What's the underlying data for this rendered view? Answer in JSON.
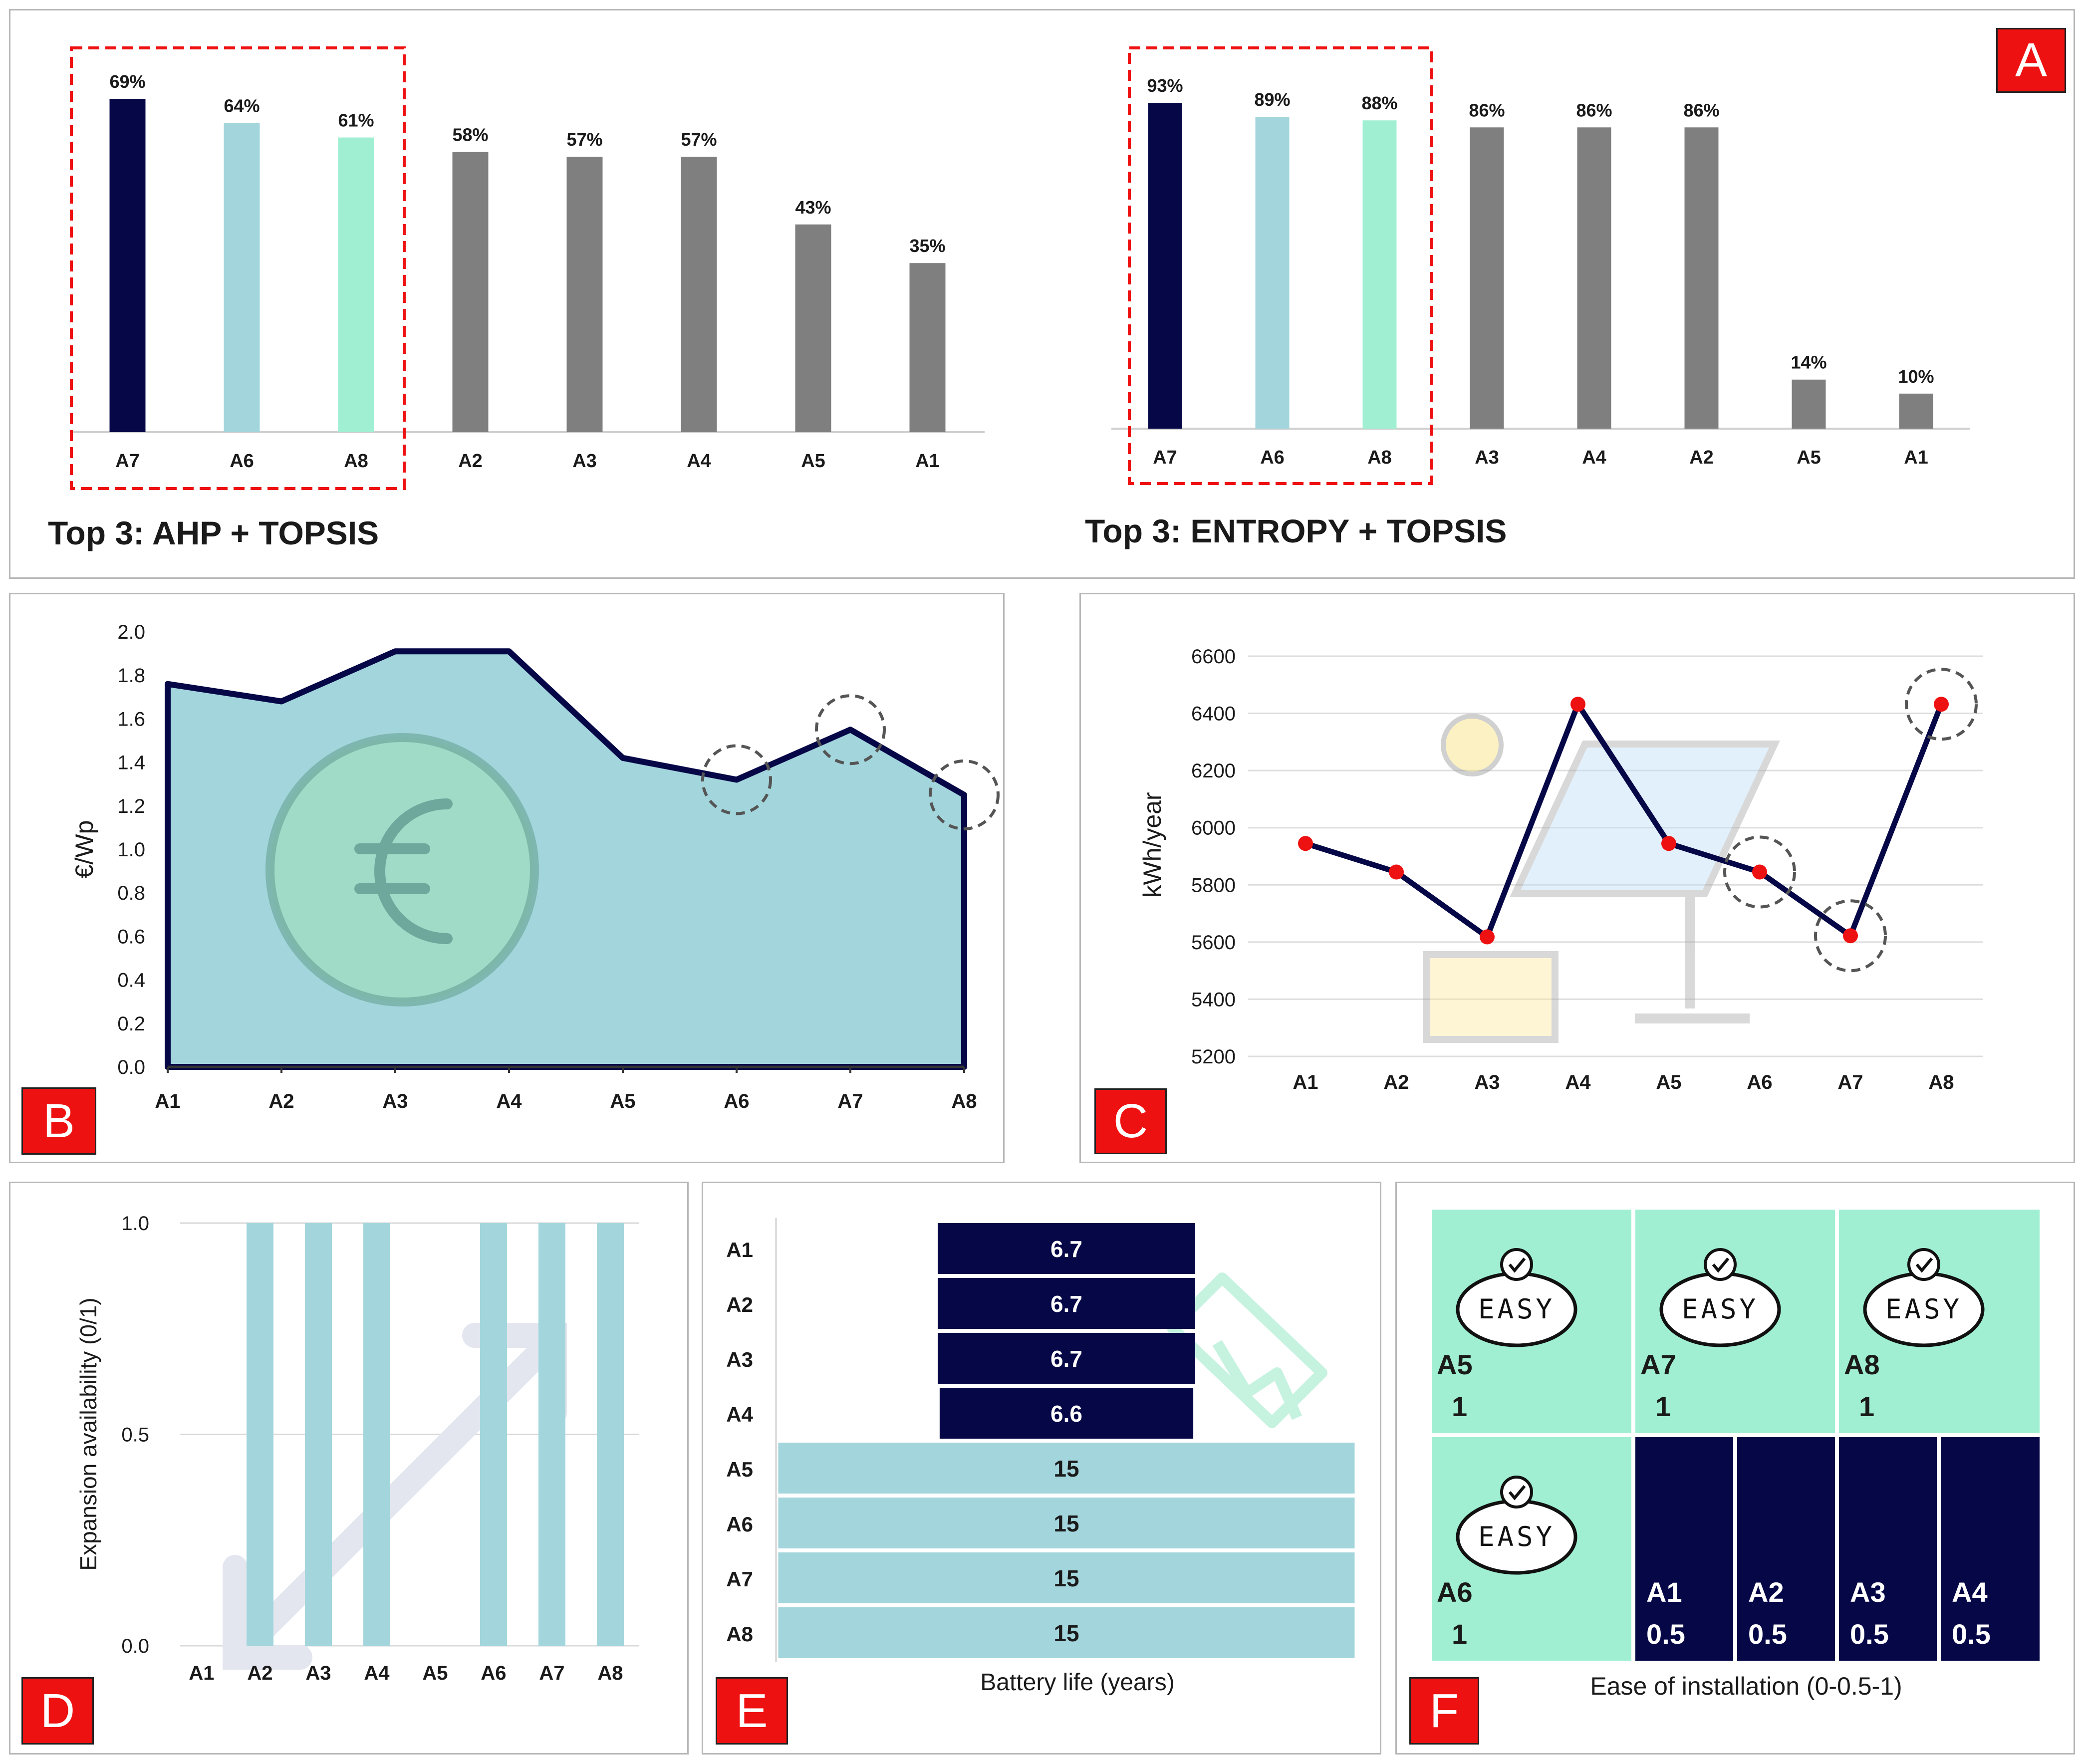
{
  "colors": {
    "navy": "#050747",
    "lightblue": "#a3d5dc",
    "mint": "#a0efd3",
    "gray": "#7f7f7f",
    "red": "#ee1111",
    "grid": "#d9d9d9"
  },
  "panelA": {
    "letter": "A",
    "ahp": {
      "title": "Top 3: AHP + TOPSIS",
      "categories": [
        "A7",
        "A6",
        "A8",
        "A2",
        "A3",
        "A4",
        "A5",
        "A1"
      ],
      "values": [
        69,
        64,
        61,
        58,
        57,
        57,
        43,
        35
      ],
      "labels": [
        "69%",
        "64%",
        "61%",
        "58%",
        "57%",
        "57%",
        "43%",
        "35%"
      ]
    },
    "entropy": {
      "title": "Top 3: ENTROPY + TOPSIS",
      "categories": [
        "A7",
        "A6",
        "A8",
        "A3",
        "A4",
        "A2",
        "A5",
        "A1"
      ],
      "values": [
        93,
        89,
        88,
        86,
        86,
        86,
        14,
        10
      ],
      "labels": [
        "93%",
        "89%",
        "88%",
        "86%",
        "86%",
        "86%",
        "14%",
        "10%"
      ]
    }
  },
  "panelB": {
    "letter": "B",
    "chart_data": {
      "type": "area",
      "ylabel": "€/Wp",
      "categories": [
        "A1",
        "A2",
        "A3",
        "A4",
        "A5",
        "A6",
        "A7",
        "A8"
      ],
      "values": [
        1.76,
        1.68,
        1.91,
        1.91,
        1.42,
        1.32,
        1.55,
        1.25
      ],
      "ylim": [
        0,
        2
      ],
      "yticks": [
        "0.0",
        "0.2",
        "0.4",
        "0.6",
        "0.8",
        "1.0",
        "1.2",
        "1.4",
        "1.6",
        "1.8",
        "2.0"
      ],
      "highlight": [
        "A6",
        "A7",
        "A8"
      ]
    }
  },
  "panelC": {
    "letter": "C",
    "chart_data": {
      "type": "line",
      "ylabel": "kWh/year",
      "categories": [
        "A1",
        "A2",
        "A3",
        "A4",
        "A5",
        "A6",
        "A7",
        "A8"
      ],
      "values": [
        5945,
        5845,
        5618,
        6432,
        5945,
        5845,
        5622,
        6432
      ],
      "ylim": [
        5200,
        6600
      ],
      "yticks": [
        "5200",
        "5400",
        "5600",
        "5800",
        "6000",
        "6200",
        "6400",
        "6600"
      ],
      "highlight": [
        "A6",
        "A7",
        "A8"
      ]
    }
  },
  "panelD": {
    "letter": "D",
    "chart_data": {
      "type": "bar",
      "ylabel": "Expansion availability (0/1)",
      "categories": [
        "A1",
        "A2",
        "A3",
        "A4",
        "A5",
        "A6",
        "A7",
        "A8"
      ],
      "values": [
        0,
        1,
        1,
        1,
        0,
        1,
        1,
        1
      ],
      "ylim": [
        0,
        1
      ],
      "yticks": [
        "0.0",
        "0.5",
        "1.0"
      ]
    }
  },
  "panelE": {
    "letter": "E",
    "chart_data": {
      "type": "bar",
      "xlabel": "Battery life (years)",
      "categories": [
        "A1",
        "A2",
        "A3",
        "A4",
        "A5",
        "A6",
        "A7",
        "A8"
      ],
      "values": [
        6.7,
        6.7,
        6.7,
        6.6,
        15,
        15,
        15,
        15
      ],
      "labels": [
        "6.7",
        "6.7",
        "6.7",
        "6.6",
        "15",
        "15",
        "15",
        "15"
      ]
    }
  },
  "panelF": {
    "letter": "F",
    "xlabel": "Ease of installation (0-0.5-1)",
    "easy_label": "EASY",
    "tiles": [
      {
        "name": "A5",
        "value": "1"
      },
      {
        "name": "A7",
        "value": "1"
      },
      {
        "name": "A8",
        "value": "1"
      },
      {
        "name": "A6",
        "value": "1"
      },
      {
        "name": "A1",
        "value": "0.5"
      },
      {
        "name": "A2",
        "value": "0.5"
      },
      {
        "name": "A3",
        "value": "0.5"
      },
      {
        "name": "A4",
        "value": "0.5"
      }
    ],
    "chart_data": {
      "type": "table",
      "categories": [
        "A1",
        "A2",
        "A3",
        "A4",
        "A5",
        "A6",
        "A7",
        "A8"
      ],
      "values": [
        0.5,
        0.5,
        0.5,
        0.5,
        1,
        1,
        1,
        1
      ]
    }
  }
}
